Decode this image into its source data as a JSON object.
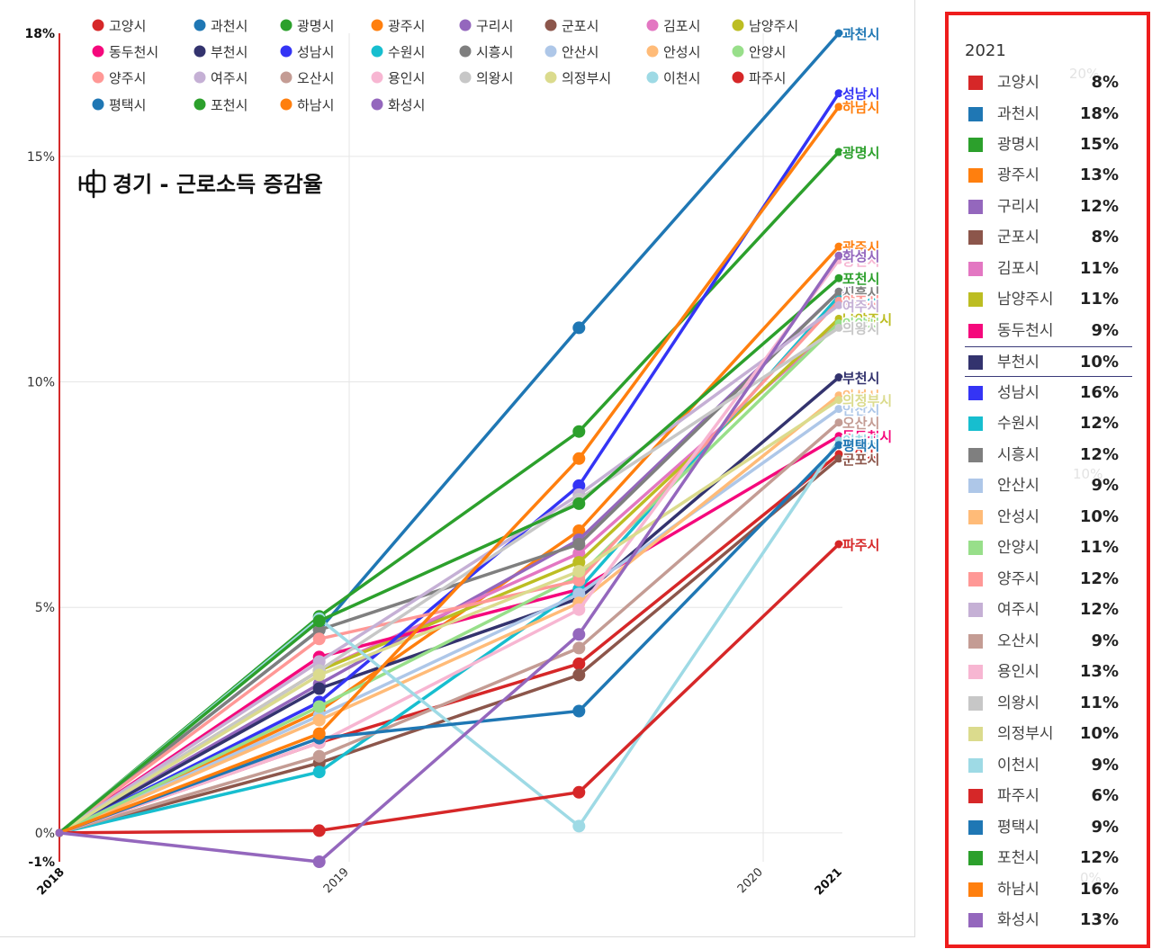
{
  "chart_data": {
    "type": "line",
    "title": "경기 - 근로소득 증감율",
    "x": [
      2018,
      2019,
      2020,
      2021
    ],
    "xticks": [
      "2018",
      "2019",
      "2020",
      "2021"
    ],
    "ylim": [
      -0.64,
      17.73
    ],
    "yticks": [
      {
        "value": 17.73,
        "label": "18%"
      },
      {
        "value": 15,
        "label": "15%"
      },
      {
        "value": 10,
        "label": "10%"
      },
      {
        "value": 5,
        "label": "5%"
      },
      {
        "value": 0,
        "label": "0%"
      },
      {
        "value": -0.64,
        "label": "-1%"
      }
    ],
    "grid": true,
    "legend": "top-left",
    "axis_color": "#d42a2a",
    "series": [
      {
        "name": "고양시",
        "color": "#d62728",
        "values": [
          0,
          2.0,
          3.75,
          8.4
        ]
      },
      {
        "name": "과천시",
        "color": "#1f77b4",
        "values": [
          0,
          4.5,
          11.2,
          17.73
        ]
      },
      {
        "name": "광명시",
        "color": "#2ca02c",
        "values": [
          0,
          4.8,
          8.9,
          15.1
        ]
      },
      {
        "name": "광주시",
        "color": "#ff7f0e",
        "values": [
          0,
          2.7,
          6.7,
          13.0
        ]
      },
      {
        "name": "구리시",
        "color": "#9467bd",
        "values": [
          0,
          3.3,
          6.5,
          12.0
        ]
      },
      {
        "name": "군포시",
        "color": "#8c564b",
        "values": [
          0,
          1.55,
          3.5,
          8.3
        ]
      },
      {
        "name": "김포시",
        "color": "#e377c2",
        "values": [
          0,
          3.6,
          6.2,
          11.3
        ]
      },
      {
        "name": "남양주시",
        "color": "#bcbd22",
        "values": [
          0,
          3.6,
          6.0,
          11.4
        ]
      },
      {
        "name": "동두천시",
        "color": "#f5087c",
        "values": [
          0,
          3.9,
          5.4,
          8.8
        ]
      },
      {
        "name": "부천시",
        "color": "#33336e",
        "values": [
          0,
          3.2,
          5.2,
          10.1
        ]
      },
      {
        "name": "성남시",
        "color": "#3434f5",
        "values": [
          0,
          2.9,
          7.7,
          16.4
        ]
      },
      {
        "name": "수원시",
        "color": "#17becf",
        "values": [
          0,
          1.35,
          5.4,
          11.9
        ]
      },
      {
        "name": "시흥시",
        "color": "#7f7f7f",
        "values": [
          0,
          4.5,
          6.4,
          12.0
        ]
      },
      {
        "name": "안산시",
        "color": "#aec7e8",
        "values": [
          0,
          2.6,
          5.3,
          9.4
        ]
      },
      {
        "name": "안성시",
        "color": "#ffbb78",
        "values": [
          0,
          2.5,
          5.1,
          9.7
        ]
      },
      {
        "name": "안양시",
        "color": "#98df8a",
        "values": [
          0,
          2.8,
          5.7,
          11.3
        ]
      },
      {
        "name": "양주시",
        "color": "#ff9896",
        "values": [
          0,
          4.3,
          5.6,
          11.8
        ]
      },
      {
        "name": "여주시",
        "color": "#c5b0d5",
        "values": [
          0,
          3.8,
          7.5,
          11.7
        ]
      },
      {
        "name": "오산시",
        "color": "#c49c94",
        "values": [
          0,
          1.7,
          4.1,
          9.1
        ]
      },
      {
        "name": "용인시",
        "color": "#f7b6d2",
        "values": [
          0,
          2.0,
          4.95,
          12.7
        ]
      },
      {
        "name": "의왕시",
        "color": "#c7c7c7",
        "values": [
          0,
          3.6,
          7.4,
          11.2
        ]
      },
      {
        "name": "의정부시",
        "color": "#dbdb8d",
        "values": [
          0,
          3.5,
          5.8,
          9.6
        ]
      },
      {
        "name": "이천시",
        "color": "#9edae5",
        "values": [
          0,
          4.75,
          0.15,
          8.7
        ]
      },
      {
        "name": "파주시",
        "color": "#d62728",
        "values": [
          0,
          0.05,
          0.9,
          6.4
        ]
      },
      {
        "name": "평택시",
        "color": "#1f77b4",
        "values": [
          0,
          2.1,
          2.7,
          8.6
        ]
      },
      {
        "name": "포천시",
        "color": "#2ca02c",
        "values": [
          0,
          4.7,
          7.3,
          12.3
        ]
      },
      {
        "name": "하남시",
        "color": "#ff7f0e",
        "values": [
          0,
          2.2,
          8.3,
          16.1
        ]
      },
      {
        "name": "화성시",
        "color": "#9467bd",
        "values": [
          0,
          -0.64,
          4.4,
          12.8
        ]
      }
    ]
  },
  "tooltip": {
    "title": "2021",
    "border_color": "#ee1c1c",
    "background_ticks": [
      "20%",
      "10%",
      "0%"
    ],
    "rows": [
      {
        "name": "고양시",
        "color": "#d62728",
        "value": "8%"
      },
      {
        "name": "과천시",
        "color": "#1f77b4",
        "value": "18%"
      },
      {
        "name": "광명시",
        "color": "#2ca02c",
        "value": "15%"
      },
      {
        "name": "광주시",
        "color": "#ff7f0e",
        "value": "13%"
      },
      {
        "name": "구리시",
        "color": "#9467bd",
        "value": "12%"
      },
      {
        "name": "군포시",
        "color": "#8c564b",
        "value": "8%"
      },
      {
        "name": "김포시",
        "color": "#e377c2",
        "value": "11%"
      },
      {
        "name": "남양주시",
        "color": "#bcbd22",
        "value": "11%"
      },
      {
        "name": "동두천시",
        "color": "#f5087c",
        "value": "9%"
      },
      {
        "name": "부천시",
        "color": "#33336e",
        "value": "10%",
        "highlighted": true
      },
      {
        "name": "성남시",
        "color": "#3434f5",
        "value": "16%"
      },
      {
        "name": "수원시",
        "color": "#17becf",
        "value": "12%"
      },
      {
        "name": "시흥시",
        "color": "#7f7f7f",
        "value": "12%"
      },
      {
        "name": "안산시",
        "color": "#aec7e8",
        "value": "9%"
      },
      {
        "name": "안성시",
        "color": "#ffbb78",
        "value": "10%"
      },
      {
        "name": "안양시",
        "color": "#98df8a",
        "value": "11%"
      },
      {
        "name": "양주시",
        "color": "#ff9896",
        "value": "12%"
      },
      {
        "name": "여주시",
        "color": "#c5b0d5",
        "value": "12%"
      },
      {
        "name": "오산시",
        "color": "#c49c94",
        "value": "9%"
      },
      {
        "name": "용인시",
        "color": "#f7b6d2",
        "value": "13%"
      },
      {
        "name": "의왕시",
        "color": "#c7c7c7",
        "value": "11%"
      },
      {
        "name": "의정부시",
        "color": "#dbdb8d",
        "value": "10%"
      },
      {
        "name": "이천시",
        "color": "#9edae5",
        "value": "9%"
      },
      {
        "name": "파주시",
        "color": "#d62728",
        "value": "6%"
      },
      {
        "name": "평택시",
        "color": "#1f77b4",
        "value": "9%"
      },
      {
        "name": "포천시",
        "color": "#2ca02c",
        "value": "12%"
      },
      {
        "name": "하남시",
        "color": "#ff7f0e",
        "value": "16%"
      },
      {
        "name": "화성시",
        "color": "#9467bd",
        "value": "13%"
      }
    ]
  }
}
